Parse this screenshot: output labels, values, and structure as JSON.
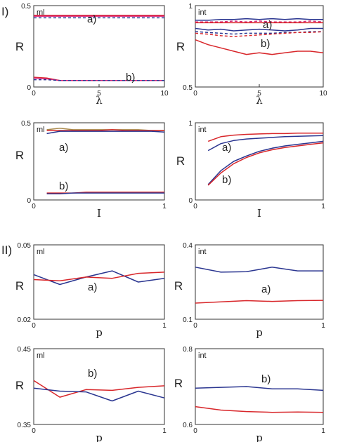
{
  "sections": [
    "I)",
    "II)"
  ],
  "colors": {
    "red": "#d8262a",
    "blue": "#2a3590",
    "magenta": "#d8267a",
    "olive": "#a8894a"
  },
  "chart_data": [
    {
      "type": "line",
      "tag": "ml",
      "ylabel": "R",
      "xlabel": "λ",
      "xlim": [
        0,
        10
      ],
      "ylim": [
        0,
        0.5
      ],
      "xticks": [
        "0",
        "5",
        "10"
      ],
      "yticks": [
        "0",
        "0.5"
      ],
      "annotations": [
        "a)",
        "b)"
      ],
      "x": [
        0,
        1,
        2,
        3,
        4,
        5,
        6,
        7,
        8,
        9,
        10
      ],
      "series": [
        {
          "color": "red",
          "dashed": false,
          "values": [
            0.44,
            0.44,
            0.44,
            0.44,
            0.44,
            0.44,
            0.44,
            0.44,
            0.44,
            0.44,
            0.44
          ]
        },
        {
          "color": "magenta",
          "dashed": false,
          "values": [
            0.435,
            0.435,
            0.435,
            0.435,
            0.435,
            0.435,
            0.435,
            0.435,
            0.435,
            0.435,
            0.435
          ]
        },
        {
          "color": "blue",
          "dashed": true,
          "values": [
            0.425,
            0.425,
            0.425,
            0.425,
            0.425,
            0.425,
            0.425,
            0.425,
            0.425,
            0.425,
            0.425
          ]
        },
        {
          "color": "red",
          "dashed": false,
          "values": [
            0.06,
            0.055,
            0.04,
            0.04,
            0.04,
            0.04,
            0.04,
            0.04,
            0.04,
            0.04,
            0.04
          ]
        },
        {
          "color": "magenta",
          "dashed": false,
          "values": [
            0.055,
            0.05,
            0.04,
            0.04,
            0.04,
            0.04,
            0.04,
            0.04,
            0.04,
            0.04,
            0.04
          ]
        },
        {
          "color": "blue",
          "dashed": true,
          "values": [
            0.045,
            0.045,
            0.04,
            0.04,
            0.04,
            0.04,
            0.04,
            0.04,
            0.04,
            0.04,
            0.04
          ]
        }
      ]
    },
    {
      "type": "line",
      "tag": "int",
      "ylabel": "R",
      "xlabel": "λ",
      "xlim": [
        0,
        10
      ],
      "ylim": [
        0.5,
        1
      ],
      "xticks": [
        "0",
        "5",
        "10"
      ],
      "yticks": [
        "0.5",
        "1"
      ],
      "annotations": [
        "a)",
        "b)"
      ],
      "x": [
        0,
        1,
        2,
        3,
        4,
        5,
        6,
        7,
        8,
        9,
        10
      ],
      "series": [
        {
          "color": "blue",
          "dashed": false,
          "values": [
            0.91,
            0.91,
            0.915,
            0.915,
            0.92,
            0.915,
            0.92,
            0.915,
            0.92,
            0.915,
            0.915
          ]
        },
        {
          "color": "magenta",
          "dashed": true,
          "values": [
            0.9,
            0.9,
            0.9,
            0.905,
            0.9,
            0.905,
            0.9,
            0.9,
            0.9,
            0.905,
            0.9
          ]
        },
        {
          "color": "red",
          "dashed": false,
          "values": [
            0.895,
            0.895,
            0.895,
            0.895,
            0.895,
            0.895,
            0.895,
            0.895,
            0.895,
            0.895,
            0.895
          ]
        },
        {
          "color": "blue",
          "dashed": false,
          "values": [
            0.86,
            0.85,
            0.855,
            0.845,
            0.85,
            0.855,
            0.85,
            0.845,
            0.85,
            0.86,
            0.86
          ]
        },
        {
          "color": "blue",
          "dashed": true,
          "values": [
            0.84,
            0.835,
            0.83,
            0.825,
            0.83,
            0.83,
            0.83,
            0.835,
            0.835,
            0.84,
            0.84
          ]
        },
        {
          "color": "red",
          "dashed": true,
          "values": [
            0.83,
            0.825,
            0.815,
            0.81,
            0.815,
            0.82,
            0.825,
            0.83,
            0.835,
            0.835,
            0.84
          ]
        },
        {
          "color": "red",
          "dashed": false,
          "values": [
            0.79,
            0.76,
            0.74,
            0.72,
            0.7,
            0.71,
            0.7,
            0.71,
            0.72,
            0.72,
            0.71
          ]
        }
      ]
    },
    {
      "type": "line",
      "tag": "ml",
      "ylabel": "R",
      "xlabel": "I",
      "xlim": [
        0,
        1
      ],
      "ylim": [
        0,
        0.5
      ],
      "xticks": [
        "0",
        "1"
      ],
      "yticks": [
        "0",
        "0.5"
      ],
      "annotations": [
        "a)",
        "b)"
      ],
      "x": [
        0.1,
        0.2,
        0.3,
        0.4,
        0.5,
        0.6,
        0.7,
        0.8,
        0.9,
        1.0
      ],
      "series": [
        {
          "color": "olive",
          "dashed": false,
          "values": [
            0.455,
            0.465,
            0.455,
            0.455,
            0.455,
            0.455,
            0.455,
            0.455,
            0.45,
            0.45
          ]
        },
        {
          "color": "red",
          "dashed": false,
          "values": [
            0.45,
            0.45,
            0.45,
            0.45,
            0.45,
            0.455,
            0.45,
            0.45,
            0.45,
            0.45
          ]
        },
        {
          "color": "blue",
          "dashed": false,
          "values": [
            0.43,
            0.445,
            0.445,
            0.445,
            0.445,
            0.445,
            0.445,
            0.445,
            0.445,
            0.44
          ]
        },
        {
          "color": "red",
          "dashed": false,
          "values": [
            0.045,
            0.045,
            0.045,
            0.05,
            0.05,
            0.05,
            0.05,
            0.05,
            0.05,
            0.05
          ]
        },
        {
          "color": "blue",
          "dashed": false,
          "values": [
            0.04,
            0.04,
            0.045,
            0.045,
            0.045,
            0.045,
            0.045,
            0.045,
            0.045,
            0.045
          ]
        }
      ]
    },
    {
      "type": "line",
      "tag": "int",
      "ylabel": "R",
      "xlabel": "I",
      "xlim": [
        0,
        1
      ],
      "ylim": [
        0,
        1
      ],
      "xticks": [
        "0",
        "1"
      ],
      "yticks": [
        "0",
        "1"
      ],
      "annotations": [
        "a)",
        "b)"
      ],
      "x": [
        0.1,
        0.2,
        0.3,
        0.4,
        0.5,
        0.6,
        0.7,
        0.8,
        0.9,
        1.0
      ],
      "series": [
        {
          "color": "red",
          "dashed": false,
          "values": [
            0.76,
            0.82,
            0.84,
            0.85,
            0.855,
            0.86,
            0.86,
            0.865,
            0.865,
            0.865
          ]
        },
        {
          "color": "blue",
          "dashed": false,
          "values": [
            0.64,
            0.73,
            0.77,
            0.79,
            0.8,
            0.81,
            0.82,
            0.825,
            0.83,
            0.835
          ]
        },
        {
          "color": "blue",
          "dashed": false,
          "values": [
            0.2,
            0.38,
            0.5,
            0.57,
            0.63,
            0.67,
            0.7,
            0.72,
            0.74,
            0.76
          ]
        },
        {
          "color": "red",
          "dashed": false,
          "values": [
            0.19,
            0.35,
            0.47,
            0.55,
            0.61,
            0.65,
            0.68,
            0.7,
            0.72,
            0.74
          ]
        }
      ]
    },
    {
      "type": "line",
      "tag": "ml",
      "ylabel": "R",
      "xlabel": "p",
      "xlim": [
        0,
        1
      ],
      "ylim": [
        0.02,
        0.05
      ],
      "xticks": [
        "0",
        "1"
      ],
      "yticks": [
        "0.02",
        "0.05"
      ],
      "annotations": [
        "a)"
      ],
      "x": [
        0,
        0.2,
        0.4,
        0.6,
        0.8,
        1.0
      ],
      "series": [
        {
          "color": "blue",
          "dashed": false,
          "values": [
            0.038,
            0.034,
            0.037,
            0.0395,
            0.035,
            0.0365
          ]
        },
        {
          "color": "red",
          "dashed": false,
          "values": [
            0.036,
            0.0355,
            0.037,
            0.0365,
            0.0385,
            0.039
          ]
        }
      ]
    },
    {
      "type": "line",
      "tag": "int",
      "ylabel": "R",
      "xlabel": "p",
      "xlim": [
        0,
        1
      ],
      "ylim": [
        0.1,
        0.4
      ],
      "xticks": [
        "0",
        "1"
      ],
      "yticks": [
        "0.1",
        "0.4"
      ],
      "annotations": [
        "a)"
      ],
      "x": [
        0,
        0.2,
        0.4,
        0.6,
        0.8,
        1.0
      ],
      "series": [
        {
          "color": "blue",
          "dashed": false,
          "values": [
            0.31,
            0.29,
            0.292,
            0.31,
            0.295,
            0.295
          ]
        },
        {
          "color": "red",
          "dashed": false,
          "values": [
            0.165,
            0.17,
            0.175,
            0.172,
            0.175,
            0.176
          ]
        }
      ]
    },
    {
      "type": "line",
      "tag": "ml",
      "ylabel": "R",
      "xlabel": "p",
      "xlim": [
        0,
        1
      ],
      "ylim": [
        0.35,
        0.45
      ],
      "xticks": [
        "0",
        "1"
      ],
      "yticks": [
        "0.35",
        "0.45"
      ],
      "annotations": [
        "b)"
      ],
      "x": [
        0,
        0.2,
        0.4,
        0.6,
        0.8,
        1.0
      ],
      "series": [
        {
          "color": "red",
          "dashed": false,
          "values": [
            0.408,
            0.386,
            0.396,
            0.395,
            0.399,
            0.401
          ]
        },
        {
          "color": "blue",
          "dashed": false,
          "values": [
            0.398,
            0.394,
            0.393,
            0.381,
            0.394,
            0.385
          ]
        }
      ]
    },
    {
      "type": "line",
      "tag": "int",
      "ylabel": "R",
      "xlabel": "p",
      "xlim": [
        0,
        1
      ],
      "ylim": [
        0.6,
        0.8
      ],
      "xticks": [
        "0",
        "1"
      ],
      "yticks": [
        "0.6",
        "0.8"
      ],
      "annotations": [
        "b)"
      ],
      "x": [
        0,
        0.2,
        0.4,
        0.6,
        0.8,
        1.0
      ],
      "series": [
        {
          "color": "blue",
          "dashed": false,
          "values": [
            0.696,
            0.698,
            0.7,
            0.694,
            0.694,
            0.69
          ]
        },
        {
          "color": "red",
          "dashed": false,
          "values": [
            0.647,
            0.638,
            0.634,
            0.632,
            0.633,
            0.632
          ]
        }
      ]
    }
  ]
}
